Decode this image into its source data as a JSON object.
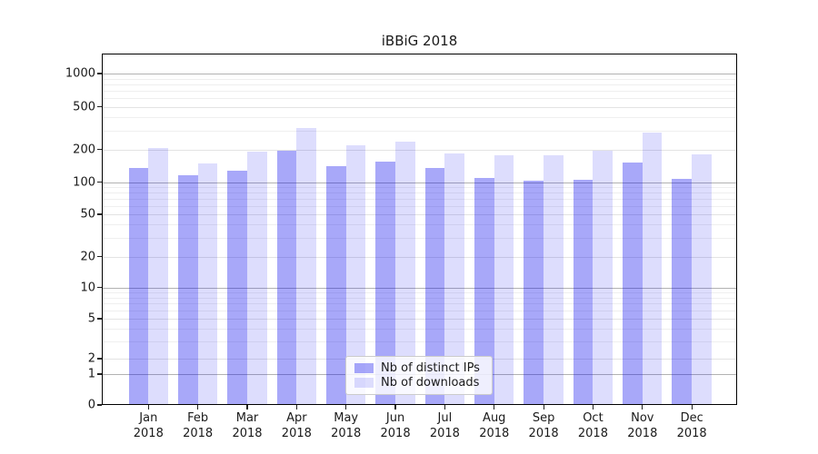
{
  "chart_data": {
    "type": "bar",
    "title": "iBBiG 2018",
    "x_categories": [
      "Jan 2018",
      "Feb 2018",
      "Mar 2018",
      "Apr 2018",
      "May 2018",
      "Jun 2018",
      "Jul 2018",
      "Aug 2018",
      "Sep 2018",
      "Oct 2018",
      "Nov 2018",
      "Dec 2018"
    ],
    "series": [
      {
        "name": "Nb of distinct IPs",
        "color": "rgba(0,0,238,0.34)",
        "values": [
          134,
          116,
          128,
          193,
          139,
          155,
          135,
          110,
          103,
          104,
          152,
          108
        ]
      },
      {
        "name": "Nb of downloads",
        "color": "rgba(0,0,238,0.135)",
        "values": [
          207,
          147,
          192,
          315,
          220,
          235,
          184,
          176,
          177,
          196,
          287,
          181
        ]
      }
    ],
    "y_scale": "symlog",
    "y_ticks": [
      0,
      1,
      2,
      5,
      10,
      20,
      50,
      100,
      200,
      500,
      1000
    ],
    "ylim": [
      0,
      1500
    ],
    "grid": {
      "major_lines": [
        1,
        10,
        100,
        1000
      ],
      "labeled_minor_lines": [
        2,
        5,
        20,
        50,
        200,
        500
      ],
      "minor_lines": [
        3,
        4,
        6,
        7,
        8,
        9,
        30,
        40,
        60,
        70,
        80,
        90,
        300,
        400,
        600,
        700,
        800,
        900
      ],
      "major_color": "#b2b2b2",
      "labeled_minor_color": "#e3e3e3",
      "minor_color": "#efefef"
    },
    "legend_position": "lower center",
    "bar_group_unit": "month"
  }
}
